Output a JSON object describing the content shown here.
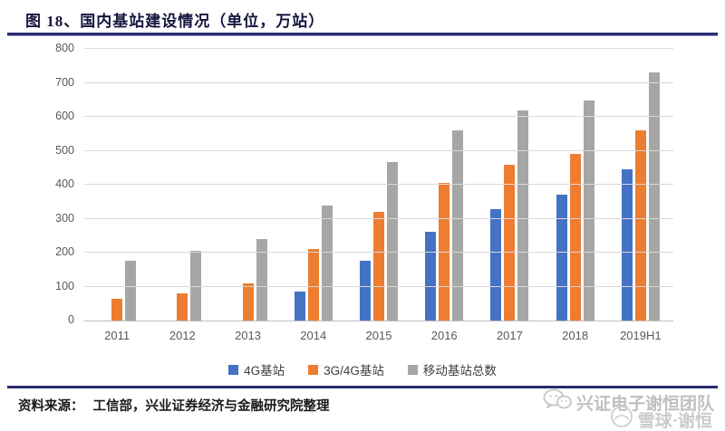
{
  "figure": {
    "title": "图 18、国内基站建设情况（单位，万站）"
  },
  "footer": {
    "source_label": "资料来源：",
    "source_text": "工信部，兴业证券经济与金融研究院整理",
    "watermark_primary": "兴证电子谢恒团队",
    "watermark_secondary": "雪球·谢恒"
  },
  "colors": {
    "series_blue": "#4472C4",
    "series_orange": "#ED7D31",
    "series_gray": "#A6A6A6",
    "gridline": "#D9D9D9",
    "axis_text": "#595959",
    "rule_navy": "#2A2D6E",
    "watermark_gray": "#C4C4C4"
  },
  "chart_data": {
    "type": "bar",
    "title": "图 18、国内基站建设情况（单位，万站）",
    "categories": [
      "2011",
      "2012",
      "2013",
      "2014",
      "2015",
      "2016",
      "2017",
      "2018",
      "2019H1"
    ],
    "series": [
      {
        "name": "4G基站",
        "color": "#4472C4",
        "values": [
          null,
          null,
          null,
          85,
          177,
          262,
          328,
          372,
          445
        ]
      },
      {
        "name": "3G/4G基站",
        "color": "#ED7D31",
        "values": [
          63,
          81,
          110,
          212,
          320,
          405,
          460,
          490,
          560
        ]
      },
      {
        "name": "移动基站总数",
        "color": "#A6A6A6",
        "values": [
          175,
          205,
          241,
          340,
          466,
          559,
          619,
          648,
          732
        ]
      }
    ],
    "xlabel": "",
    "ylabel": "",
    "ylim": [
      0,
      800
    ],
    "ytick_step": 100,
    "grid": true,
    "legend_position": "bottom"
  }
}
